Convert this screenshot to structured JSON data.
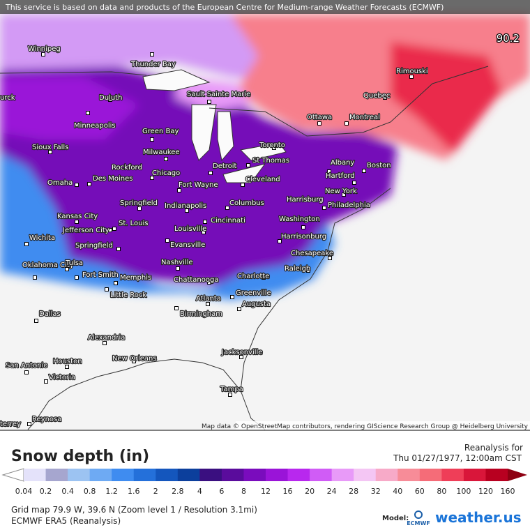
{
  "header": {
    "notice": "This service is based on data and products of the European Centre for Medium-range Weather Forecasts (ECMWF)",
    "max_value": "90.2",
    "attribution": "Map data © OpenStreetMap contributors, rendering GIScience Research Group @ Heidelberg University"
  },
  "cities": [
    "Winnipeg",
    "Thunder Bay",
    "urck",
    "Duluth",
    "Sault Sainte Marie",
    "Minneapolis",
    "Green Bay",
    "Sioux Falls",
    "Milwaukee",
    "Rockford",
    "Chicago",
    "Des Moines",
    "Omaha",
    "Detroit",
    "St Thomas",
    "Toronto",
    "Ottawa",
    "Montreal",
    "Quebec",
    "Rimouski",
    "Albany",
    "Boston",
    "Hartford",
    "Fort Wayne",
    "Cleveland",
    "New York",
    "Harrisburg",
    "Philadelphia",
    "Springfield",
    "Indianapolis",
    "Columbus",
    "Kansas City",
    "Washington",
    "Cincinnati",
    "St. Louis",
    "Jefferson City",
    "Louisville",
    "Harrisonburg",
    "Wichita",
    "Springfield",
    "Evansville",
    "Chesapeake",
    "Oklahoma City",
    "Tulsa",
    "Nashville",
    "Raleigh",
    "Fort Smith",
    "Memphis",
    "Chattanooga",
    "Charlotte",
    "Greenville",
    "Little Rock",
    "Atlanta",
    "Augusta",
    "Birmingham",
    "Dallas",
    "Alexandria",
    "New Orleans",
    "Jacksonville",
    "Houston",
    "San Antonio",
    "Victoria",
    "Tampa",
    "Reynosa",
    "terrey"
  ],
  "legend": {
    "title": "Snow depth (in)",
    "reanalysis": "Reanalysis for",
    "date": "Thu 01/27/1977, 12:00am CST",
    "ticks": [
      "0.04",
      "0.2",
      "0.4",
      "0.8",
      "1.2",
      "1.6",
      "2",
      "2.8",
      "4",
      "6",
      "8",
      "12",
      "16",
      "20",
      "24",
      "28",
      "32",
      "40",
      "60",
      "80",
      "100",
      "120",
      "160"
    ],
    "colors": [
      "#e4e2fa",
      "#c8c6ea",
      "#a6a6cf",
      "#9cc3f2",
      "#6eaaf3",
      "#3f8cf0",
      "#2470da",
      "#1456bd",
      "#0c3f9c",
      "#3a0f80",
      "#5a0c9c",
      "#7a0cbd",
      "#9a14d8",
      "#b828ee",
      "#d05cf6",
      "#e89af8",
      "#f4c6f4",
      "#f7aac8",
      "#f78c98",
      "#f56c78",
      "#ef3e58",
      "#d9163a",
      "#b80020",
      "#8e0012"
    ]
  },
  "footer": {
    "grid": "Grid map 79.9 W, 39.6 N (Zoom level 1 / Resolution 3.1mi)",
    "model_name": "ECMWF ERA5 (Reanalysis)",
    "model_label": "Model:",
    "model_logo": "ECMWF",
    "brand": "weather.us"
  }
}
